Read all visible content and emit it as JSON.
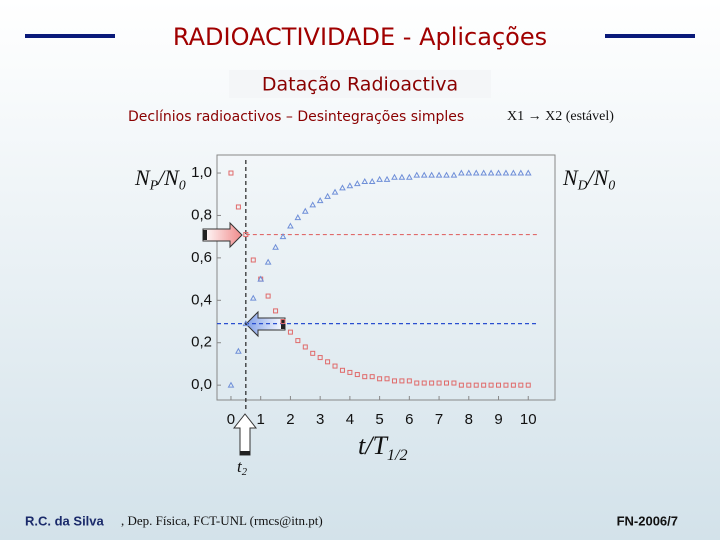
{
  "header": {
    "title": "RADIOACTIVIDADE - Aplicações",
    "subtitle": "Datação Radioactiva",
    "line_text": "Declínios radioactivos – Desintegrações simples",
    "line_formula": "X1 → X2 (estável)"
  },
  "chart_data": {
    "type": "scatter",
    "y_label": [
      {
        "text": "N"
      },
      {
        "text": "P",
        "sub": true
      },
      {
        "text": "/N"
      },
      {
        "text": "0",
        "sub": true
      }
    ],
    "y2_label": [
      {
        "text": "N"
      },
      {
        "text": "D",
        "sub": true
      },
      {
        "text": "/N"
      },
      {
        "text": "0",
        "sub": true
      }
    ],
    "x_label": [
      {
        "text": "t/T"
      },
      {
        "text": "1/2",
        "sub": true
      }
    ],
    "annotation": [
      {
        "text": "t"
      },
      {
        "text": "2",
        "sub": true
      }
    ],
    "xlim": [
      -0.47,
      10.9
    ],
    "ylim": [
      -0.07,
      1.085
    ],
    "xticks": [
      0,
      1,
      2,
      3,
      4,
      5,
      6,
      7,
      8,
      9,
      10
    ],
    "yticks": [
      {
        "value": 0,
        "label": "0,0"
      },
      {
        "value": 0.2,
        "label": "0,2"
      },
      {
        "value": 0.4,
        "label": "0,4"
      },
      {
        "value": 0.6,
        "label": "0,6"
      },
      {
        "value": 0.8,
        "label": "0,8"
      },
      {
        "value": 1,
        "label": "1,0"
      }
    ],
    "x": [
      0,
      0.25,
      0.5,
      0.75,
      1,
      1.25,
      1.5,
      1.75,
      2,
      2.25,
      2.5,
      2.75,
      3,
      3.25,
      3.5,
      3.75,
      4,
      4.25,
      4.5,
      4.75,
      5,
      5.25,
      5.5,
      5.75,
      6,
      6.25,
      6.5,
      6.75,
      7,
      7.25,
      7.5,
      7.75,
      8,
      8.25,
      8.5,
      8.75,
      9,
      9.25,
      9.5,
      9.75,
      10
    ],
    "series": [
      {
        "color": "#e06a6a",
        "marker": "square",
        "values": [
          1.0,
          0.84,
          0.71,
          0.59,
          0.5,
          0.42,
          0.35,
          0.3,
          0.25,
          0.21,
          0.18,
          0.15,
          0.13,
          0.11,
          0.09,
          0.07,
          0.06,
          0.05,
          0.04,
          0.04,
          0.03,
          0.03,
          0.02,
          0.02,
          0.02,
          0.01,
          0.01,
          0.01,
          0.01,
          0.01,
          0.01,
          0.0,
          0.0,
          0.0,
          0.0,
          0.0,
          0.0,
          0.0,
          0.0,
          0.0,
          0.0
        ]
      },
      {
        "color": "#6f8fd8",
        "marker": "triangle",
        "values": [
          0.0,
          0.16,
          0.29,
          0.41,
          0.5,
          0.58,
          0.65,
          0.7,
          0.75,
          0.79,
          0.82,
          0.85,
          0.87,
          0.89,
          0.91,
          0.93,
          0.94,
          0.95,
          0.96,
          0.96,
          0.97,
          0.97,
          0.98,
          0.98,
          0.98,
          0.99,
          0.99,
          0.99,
          0.99,
          0.99,
          0.99,
          1.0,
          1.0,
          1.0,
          1.0,
          1.0,
          1.0,
          1.0,
          1.0,
          1.0,
          1.0
        ]
      }
    ],
    "reference_lines": [
      {
        "axis": "y",
        "value": 0.71,
        "color": "#e06a6a"
      },
      {
        "axis": "y",
        "value": 0.29,
        "color": "#2a4fd0"
      },
      {
        "axis": "x",
        "value": 0.5,
        "color": "#222222"
      }
    ]
  },
  "footer": {
    "author": "R.C. da Silva",
    "affiliation": ", Dep. Física, FCT-UNL (rmcs@itn.pt)",
    "code": "FN-2006/7"
  }
}
